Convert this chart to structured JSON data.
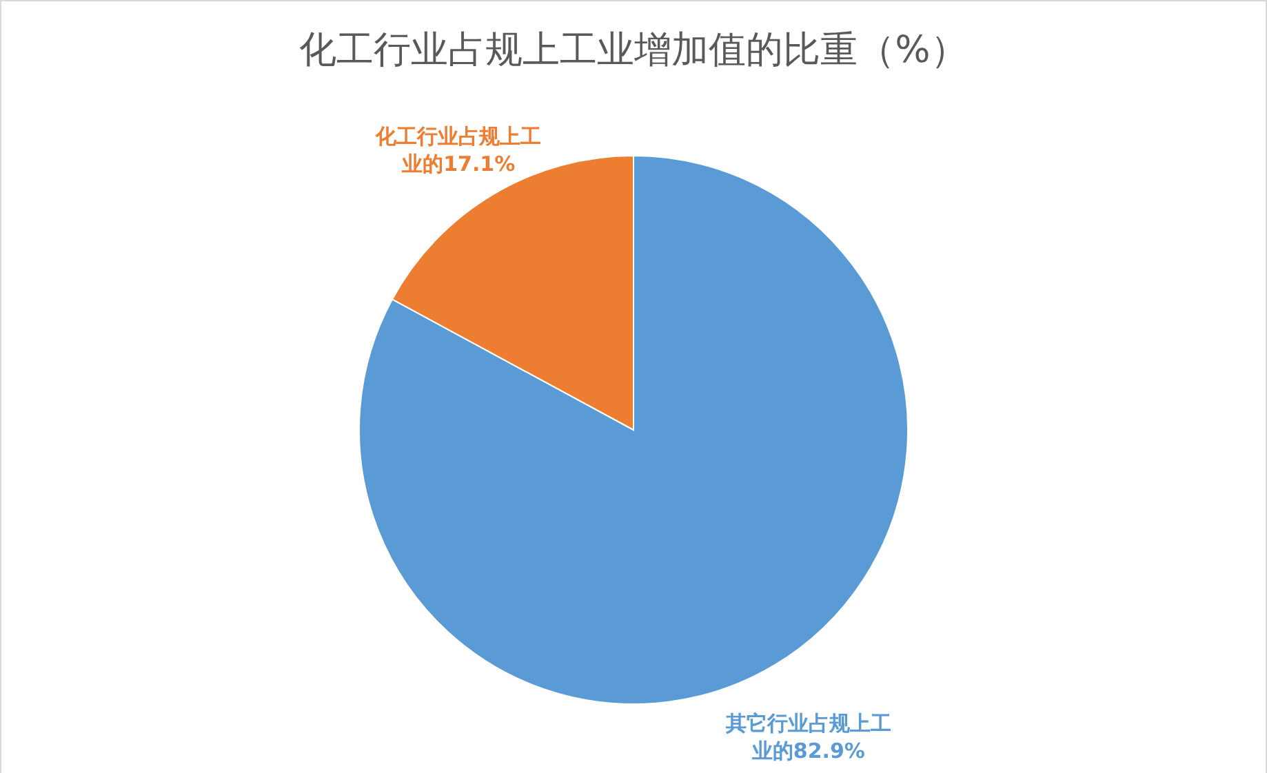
{
  "chart_data": {
    "type": "pie",
    "title": "化工行业占规上工业增加值的比重（%）",
    "categories": [
      "其它行业占规上工业的",
      "化工行业占规上工业的"
    ],
    "values": [
      82.9,
      17.1
    ],
    "colors": [
      "#5b9bd5",
      "#ed7d31"
    ],
    "value_labels": [
      "82.9%",
      "17.1%"
    ],
    "legend": false
  }
}
